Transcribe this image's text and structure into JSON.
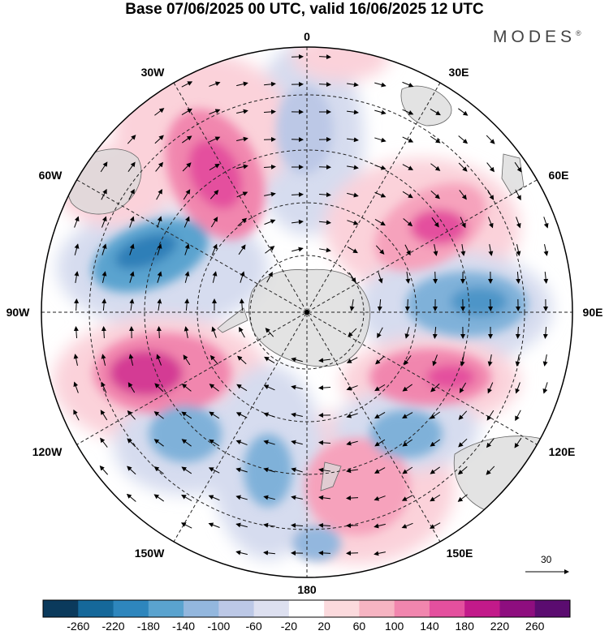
{
  "title": "Base 07/06/2025 00 UTC, valid 16/06/2025 12 UTC",
  "brand": "MODES",
  "brand_mark": "®",
  "longitude_labels": {
    "top": "0",
    "top_right": "30E",
    "right_upper": "60E",
    "right": "90E",
    "right_lower": "120E",
    "bottom_right": "150E",
    "bottom": "180",
    "bottom_left": "150W",
    "left_lower": "120W",
    "left": "90W",
    "left_upper": "60W",
    "top_left": "30W"
  },
  "reference_vector": {
    "value": "30"
  },
  "colorbar": {
    "labels": [
      "-260",
      "-220",
      "-180",
      "-140",
      "-100",
      "-60",
      "-20",
      "20",
      "60",
      "100",
      "140",
      "180",
      "220",
      "260"
    ],
    "colors": [
      "#0b3a5c",
      "#15689a",
      "#2e86bd",
      "#5aa3cf",
      "#93b7de",
      "#bcc8e6",
      "#dde0f0",
      "#ffffff",
      "#fbdadd",
      "#f6b4c2",
      "#f186ae",
      "#e4509e",
      "#c21a8a",
      "#8e0e7f",
      "#5b0c70"
    ]
  },
  "map_colors": {
    "land": "#d9d9d9",
    "coast": "#666666",
    "positive": "#f186ae",
    "negative": "#5aa3cf"
  }
}
